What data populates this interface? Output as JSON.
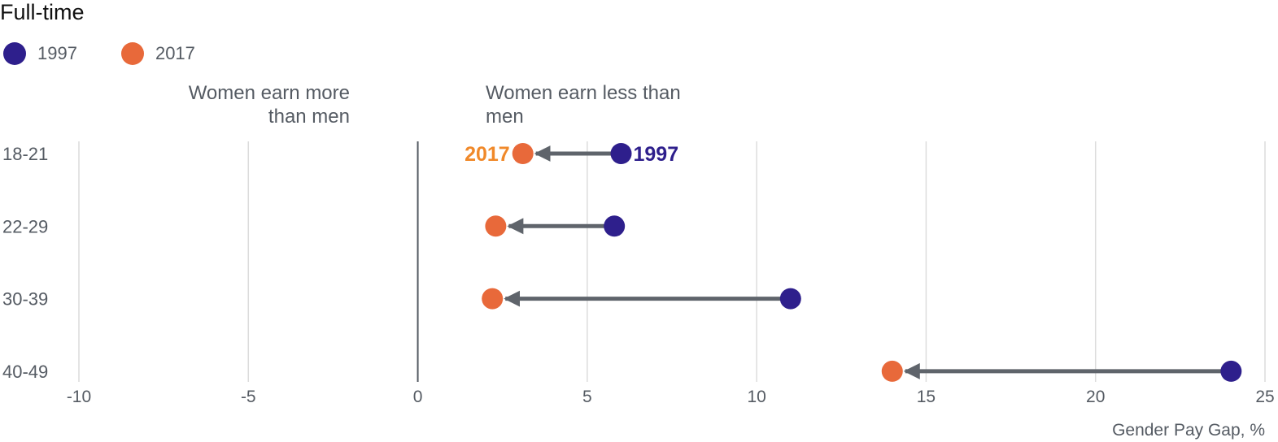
{
  "title": "Full-time",
  "legend": [
    {
      "label": "1997",
      "color": "#2e1f8c"
    },
    {
      "label": "2017",
      "color": "#e8693a"
    }
  ],
  "regions": {
    "left": "Women earn more than men",
    "right": "Women earn less than men"
  },
  "annotations": {
    "start_label": "1997",
    "end_label": "2017",
    "start_color": "#2e1f8c",
    "end_color": "#f0892a"
  },
  "chart_data": {
    "type": "dumbbell",
    "title": "Full-time",
    "xlabel": "Gender Pay Gap, %",
    "ylabel": "",
    "xlim": [
      -10,
      25
    ],
    "xticks": [
      -10,
      -5,
      0,
      5,
      10,
      15,
      20,
      25
    ],
    "grid": true,
    "legend_position": "top-left",
    "categories": [
      "18-21",
      "22-29",
      "30-39",
      "40-49"
    ],
    "series": [
      {
        "name": "1997",
        "color": "#2e1f8c",
        "values": [
          6.0,
          5.8,
          11.0,
          24.0
        ]
      },
      {
        "name": "2017",
        "color": "#e8693a",
        "values": [
          3.1,
          2.3,
          2.2,
          14.0
        ]
      }
    ],
    "arrow_color": "#5f646b"
  }
}
